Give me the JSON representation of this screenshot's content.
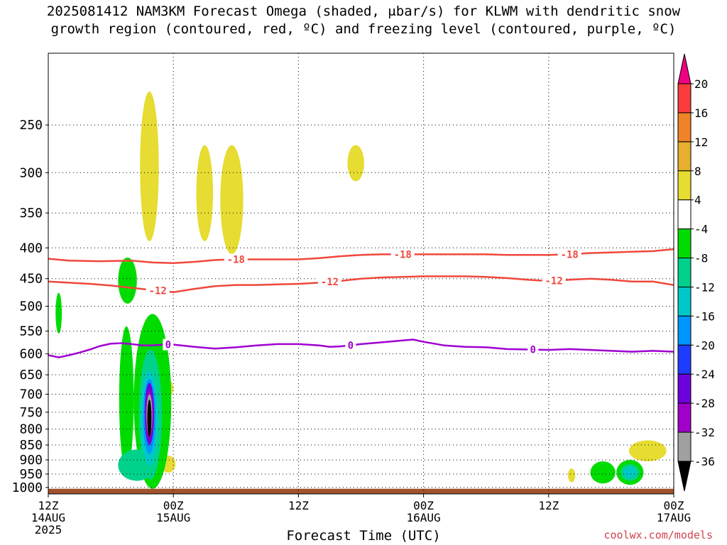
{
  "title": {
    "line1": "2025081412 NAM3KM Forecast Omega (shaded, μbar/s) for KLWM with dendritic snow",
    "line2": "growth region (contoured, red, ºC) and freezing level (contoured, purple, ºC)"
  },
  "credit": "coolwx.com/models",
  "colors": {
    "omega_fill": [
      "#000000",
      "#a0a0a0",
      "#a000c8",
      "#6e00dc",
      "#1e3cff",
      "#0096ff",
      "#00c8c8",
      "#00d28c",
      "#00dc00",
      "#ffffff",
      "#e6dc32",
      "#e6af2d",
      "#f08228",
      "#fa3c3c",
      "#f00082"
    ],
    "dgz_contour": "#f0473c",
    "freezing_contour": "#a000d0",
    "ground": "#a0522d"
  },
  "chart_data": {
    "type": "time-height",
    "xlabel": "Forecast Time (UTC)",
    "ylabel": "",
    "x_range_hours": [
      0,
      60
    ],
    "x_ticks": [
      {
        "hour": 0,
        "lines": [
          "12Z",
          "14AUG",
          "2025"
        ]
      },
      {
        "hour": 12,
        "lines": [
          "00Z",
          "15AUG"
        ]
      },
      {
        "hour": 24,
        "lines": [
          "12Z"
        ]
      },
      {
        "hour": 36,
        "lines": [
          "00Z",
          "16AUG"
        ]
      },
      {
        "hour": 48,
        "lines": [
          "12Z"
        ]
      },
      {
        "hour": 60,
        "lines": [
          "00Z",
          "17AUG"
        ]
      }
    ],
    "y_range_mb": [
      1025,
      190
    ],
    "y_ticks": [
      250,
      300,
      350,
      400,
      450,
      500,
      550,
      600,
      650,
      700,
      750,
      800,
      850,
      900,
      950,
      1000
    ],
    "surface_pressure_mb": 1005,
    "colorbar": {
      "labels": [
        "20",
        "16",
        "12",
        "8",
        "4",
        "-4",
        "-8",
        "-12",
        "-16",
        "-20",
        "-24",
        "-28",
        "-32",
        "-36"
      ]
    },
    "contours": [
      {
        "name": "-18",
        "role": "dgz",
        "label_hours": [
          18,
          34,
          50
        ],
        "points": [
          [
            0,
            417
          ],
          [
            2,
            420
          ],
          [
            5,
            421
          ],
          [
            8,
            420
          ],
          [
            10,
            423
          ],
          [
            12,
            424
          ],
          [
            14,
            422
          ],
          [
            16,
            419
          ],
          [
            18,
            418
          ],
          [
            20,
            418
          ],
          [
            22,
            418
          ],
          [
            24,
            418
          ],
          [
            26,
            416
          ],
          [
            28,
            413
          ],
          [
            30,
            411
          ],
          [
            32,
            410
          ],
          [
            34,
            410
          ],
          [
            36,
            410
          ],
          [
            38,
            410
          ],
          [
            40,
            410
          ],
          [
            42,
            410
          ],
          [
            44,
            411
          ],
          [
            46,
            411
          ],
          [
            48,
            411
          ],
          [
            50,
            410
          ],
          [
            52,
            408
          ],
          [
            54,
            407
          ],
          [
            56,
            406
          ],
          [
            58,
            405
          ],
          [
            60,
            402
          ]
        ]
      },
      {
        "name": "-12",
        "role": "dgz",
        "label_hours": [
          10.5,
          27,
          48.5
        ],
        "points": [
          [
            0,
            455
          ],
          [
            2,
            457
          ],
          [
            4,
            459
          ],
          [
            6,
            462
          ],
          [
            8,
            466
          ],
          [
            10,
            470
          ],
          [
            12,
            474
          ],
          [
            14,
            468
          ],
          [
            16,
            463
          ],
          [
            18,
            461
          ],
          [
            20,
            461
          ],
          [
            22,
            460
          ],
          [
            24,
            459
          ],
          [
            26,
            457
          ],
          [
            28,
            454
          ],
          [
            30,
            450
          ],
          [
            32,
            448
          ],
          [
            34,
            447
          ],
          [
            36,
            446
          ],
          [
            38,
            446
          ],
          [
            40,
            446
          ],
          [
            42,
            447
          ],
          [
            44,
            449
          ],
          [
            46,
            452
          ],
          [
            48,
            454
          ],
          [
            50,
            452
          ],
          [
            52,
            450
          ],
          [
            54,
            452
          ],
          [
            56,
            455
          ],
          [
            58,
            455
          ],
          [
            60,
            461
          ]
        ]
      },
      {
        "name": "0",
        "role": "freezing",
        "label_hours": [
          11.5,
          29,
          46.5
        ],
        "points": [
          [
            0,
            603
          ],
          [
            1,
            608
          ],
          [
            2,
            603
          ],
          [
            3,
            597
          ],
          [
            4,
            590
          ],
          [
            5,
            582
          ],
          [
            6,
            577
          ],
          [
            7,
            576
          ],
          [
            8,
            578
          ],
          [
            9,
            581
          ],
          [
            10,
            581
          ],
          [
            11,
            579
          ],
          [
            12,
            579
          ],
          [
            14,
            584
          ],
          [
            16,
            588
          ],
          [
            18,
            585
          ],
          [
            20,
            581
          ],
          [
            22,
            578
          ],
          [
            24,
            578
          ],
          [
            26,
            581
          ],
          [
            27,
            584
          ],
          [
            28,
            583
          ],
          [
            30,
            578
          ],
          [
            32,
            574
          ],
          [
            34,
            570
          ],
          [
            35,
            568
          ],
          [
            36,
            573
          ],
          [
            38,
            581
          ],
          [
            40,
            584
          ],
          [
            42,
            585
          ],
          [
            44,
            589
          ],
          [
            46,
            590
          ],
          [
            48,
            591
          ],
          [
            50,
            589
          ],
          [
            52,
            591
          ],
          [
            54,
            593
          ],
          [
            56,
            595
          ],
          [
            58,
            593
          ],
          [
            60,
            595
          ]
        ]
      }
    ],
    "omega_features": [
      {
        "center": [
          9.7,
          305
        ],
        "extent": [
          0.9,
          85
        ],
        "level": 4
      },
      {
        "center": [
          15,
          330
        ],
        "extent": [
          0.8,
          60
        ],
        "level": 4
      },
      {
        "center": [
          17.6,
          340
        ],
        "extent": [
          1.1,
          70
        ],
        "level": 4
      },
      {
        "center": [
          29.5,
          290
        ],
        "extent": [
          0.8,
          20
        ],
        "level": 4
      },
      {
        "center": [
          11.3,
          685
        ],
        "extent": [
          0.7,
          25
        ],
        "level": 4
      },
      {
        "center": [
          11.5,
          915
        ],
        "extent": [
          0.7,
          30
        ],
        "level": 4
      },
      {
        "center": [
          50.2,
          955
        ],
        "extent": [
          0.35,
          25
        ],
        "level": 4
      },
      {
        "center": [
          57.5,
          870
        ],
        "extent": [
          1.8,
          35
        ],
        "level": 4
      },
      {
        "center": [
          7.6,
          455
        ],
        "extent": [
          0.9,
          40
        ],
        "level": -4
      },
      {
        "center": [
          1,
          515
        ],
        "extent": [
          0.3,
          40
        ],
        "level": -4
      },
      {
        "center": [
          7.5,
          740
        ],
        "extent": [
          0.7,
          200
        ],
        "level": -4
      },
      {
        "center": [
          10,
          760
        ],
        "extent": [
          1.8,
          245
        ],
        "level": -4
      },
      {
        "center": [
          8.5,
          920
        ],
        "extent": [
          1.8,
          55
        ],
        "level": -8
      },
      {
        "center": [
          9.8,
          780
        ],
        "extent": [
          1.1,
          190
        ],
        "level": -8
      },
      {
        "center": [
          9.7,
          780
        ],
        "extent": [
          0.8,
          140
        ],
        "level": -12
      },
      {
        "center": [
          9.7,
          770
        ],
        "extent": [
          0.6,
          110
        ],
        "level": -16
      },
      {
        "center": [
          9.7,
          760
        ],
        "extent": [
          0.45,
          90
        ],
        "level": -24
      },
      {
        "center": [
          9.7,
          760
        ],
        "extent": [
          0.35,
          70
        ],
        "level": -28
      },
      {
        "center": [
          9.7,
          760
        ],
        "extent": [
          0.28,
          60
        ],
        "level": -32
      },
      {
        "center": [
          9.7,
          770
        ],
        "extent": [
          0.2,
          55
        ],
        "level": -36
      },
      {
        "center": [
          53.2,
          945
        ],
        "extent": [
          1.2,
          40
        ],
        "level": -4
      },
      {
        "center": [
          55.8,
          945
        ],
        "extent": [
          1.3,
          45
        ],
        "level": -4
      },
      {
        "center": [
          55.8,
          945
        ],
        "extent": [
          0.9,
          30
        ],
        "level": -8
      },
      {
        "center": [
          55.8,
          945
        ],
        "extent": [
          0.6,
          20
        ],
        "level": -12
      }
    ]
  }
}
